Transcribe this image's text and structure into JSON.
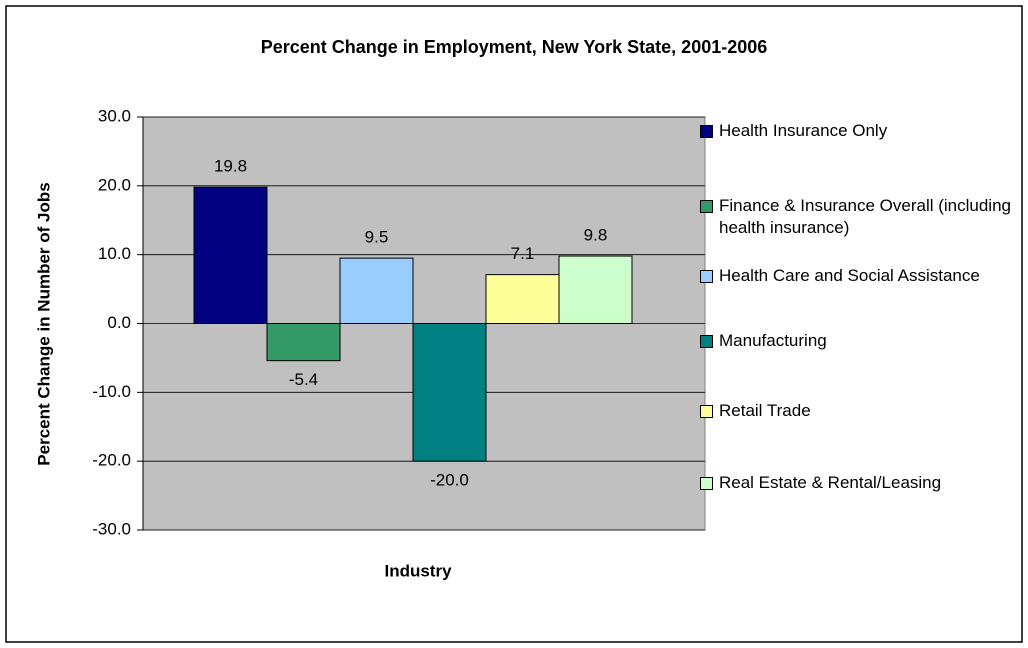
{
  "chart_data": {
    "type": "bar",
    "title": "Percent Change in Employment, New York State, 2001-2006",
    "x_label": "Industry",
    "y_label": "Percent Change in Number of Jobs",
    "series": [
      {
        "name": "Health Insurance Only",
        "color": "#000080",
        "values": [
          19.8
        ]
      },
      {
        "name": "Finance & Insurance Overall (including health insurance)",
        "color": "#339966",
        "values": [
          -5.4
        ]
      },
      {
        "name": "Health Care and Social Assistance",
        "color": "#99ccff",
        "values": [
          9.5
        ]
      },
      {
        "name": "Manufacturing",
        "color": "#008080",
        "values": [
          -20
        ],
        "value_labels": [
          "-20.0"
        ]
      },
      {
        "name": "Retail Trade",
        "color": "#ffff99",
        "values": [
          7.1
        ]
      },
      {
        "name": "Real Estate & Rental/Leasing",
        "color": "#ccffcc",
        "values": [
          9.8
        ]
      }
    ],
    "ylim": [
      -30,
      30
    ],
    "yticks": [
      {
        "value": -30,
        "label": "-30.0"
      },
      {
        "value": -20,
        "label": "-20.0"
      },
      {
        "value": -10,
        "label": "-10.0"
      },
      {
        "value": 0,
        "label": "0.0"
      },
      {
        "value": 10,
        "label": "10.0"
      },
      {
        "value": 20,
        "label": "20.0"
      },
      {
        "value": 30,
        "label": "30.0"
      }
    ],
    "grid": true,
    "plot_background": "#c0c0c0",
    "legend": "right"
  }
}
